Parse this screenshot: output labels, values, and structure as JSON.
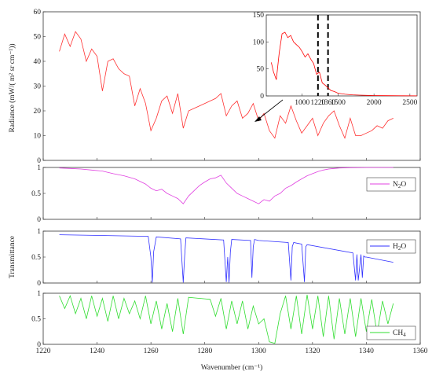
{
  "chart_data": [
    {
      "type": "line",
      "panel": "radiance",
      "ylabel": "Radiance (mW/( m² sr cm⁻¹))",
      "xlim": [
        1220,
        1360
      ],
      "ylim": [
        0,
        60
      ],
      "yticks": [
        "0",
        "10",
        "20",
        "30",
        "40",
        "50",
        "60"
      ],
      "color": "#ff3030",
      "series": [
        {
          "x": [
            1226,
            1228,
            1230,
            1232,
            1234,
            1236,
            1238,
            1240,
            1242,
            1244,
            1246,
            1248,
            1250,
            1252,
            1254,
            1256,
            1258,
            1260,
            1262,
            1264,
            1266,
            1268,
            1270,
            1272,
            1274,
            1276,
            1278,
            1280,
            1282,
            1284,
            1286,
            1288,
            1290,
            1292,
            1294,
            1296,
            1298,
            1300,
            1302,
            1304,
            1306,
            1308,
            1310,
            1312,
            1314,
            1316,
            1318,
            1320,
            1322,
            1324,
            1326,
            1328,
            1330,
            1332,
            1334,
            1336,
            1338,
            1340,
            1342,
            1344,
            1346,
            1348,
            1350
          ],
          "y": [
            44,
            51,
            46,
            52,
            49,
            40,
            45,
            42,
            28,
            40,
            41,
            37,
            35,
            34,
            22,
            29,
            23,
            12,
            17,
            24,
            26,
            19,
            27,
            13,
            20,
            21,
            22,
            23,
            24,
            25,
            27,
            18,
            22,
            24,
            17,
            19,
            23,
            16,
            19,
            12,
            9,
            18,
            15,
            22,
            16,
            11,
            14,
            17,
            10,
            15,
            18,
            20,
            14,
            9,
            17,
            10,
            10,
            11,
            12,
            14,
            13,
            16,
            17
          ]
        }
      ]
    },
    {
      "type": "line",
      "panel": "inset",
      "xlim": [
        500,
        2600
      ],
      "ylim": [
        0,
        150
      ],
      "yticks": [
        "0",
        "50",
        "100",
        "150"
      ],
      "xticks": [
        "1000",
        "1220",
        "1360",
        "1500",
        "2000",
        "2500"
      ],
      "color": "#ff0000",
      "series": [
        {
          "x": [
            570,
            600,
            640,
            680,
            720,
            760,
            800,
            840,
            880,
            920,
            960,
            1000,
            1040,
            1080,
            1120,
            1160,
            1200,
            1240,
            1280,
            1320,
            1360,
            1400,
            1450,
            1500,
            1600,
            1700,
            1800,
            1900,
            2000,
            2200,
            2400,
            2600
          ],
          "y": [
            62,
            45,
            30,
            80,
            115,
            118,
            108,
            112,
            100,
            95,
            90,
            82,
            72,
            78,
            68,
            60,
            40,
            44,
            24,
            20,
            15,
            10,
            8,
            5,
            3,
            2,
            1.5,
            1,
            0.8,
            0.5,
            0.3,
            0.2
          ]
        }
      ],
      "markers": [
        1220,
        1360
      ]
    },
    {
      "type": "line",
      "panel": "N2O",
      "xlim": [
        1220,
        1360
      ],
      "ylim": [
        0,
        1
      ],
      "yticks": [
        "0",
        "0.5",
        "1"
      ],
      "color": "#e040e0",
      "series": [
        {
          "name": "N₂O",
          "x": [
            1226,
            1230,
            1234,
            1238,
            1242,
            1246,
            1250,
            1254,
            1258,
            1260,
            1262,
            1264,
            1266,
            1268,
            1270,
            1272,
            1274,
            1276,
            1278,
            1280,
            1282,
            1284,
            1286,
            1288,
            1290,
            1292,
            1294,
            1296,
            1298,
            1300,
            1302,
            1304,
            1306,
            1308,
            1310,
            1312,
            1314,
            1316,
            1318,
            1320,
            1322,
            1324,
            1326,
            1328,
            1330,
            1334,
            1340,
            1344,
            1350
          ],
          "y": [
            0.99,
            0.98,
            0.97,
            0.95,
            0.93,
            0.88,
            0.84,
            0.78,
            0.68,
            0.6,
            0.55,
            0.58,
            0.5,
            0.45,
            0.4,
            0.3,
            0.45,
            0.55,
            0.65,
            0.72,
            0.78,
            0.8,
            0.85,
            0.7,
            0.6,
            0.5,
            0.45,
            0.4,
            0.35,
            0.3,
            0.38,
            0.35,
            0.45,
            0.5,
            0.6,
            0.65,
            0.72,
            0.78,
            0.84,
            0.88,
            0.92,
            0.95,
            0.97,
            0.98,
            0.99,
            0.995,
            0.998,
            0.999,
            1.0
          ]
        }
      ]
    },
    {
      "type": "line",
      "panel": "H2O",
      "ylabel": "Transmittance",
      "xlim": [
        1220,
        1360
      ],
      "ylim": [
        0,
        1
      ],
      "yticks": [
        "0",
        "0.5",
        "1"
      ],
      "color": "#3030ff",
      "series": [
        {
          "name": "H₂O",
          "x": [
            1226,
            1259,
            1260,
            1260.5,
            1261,
            1262,
            1271,
            1272,
            1272.5,
            1273,
            1287,
            1288,
            1288.5,
            1289,
            1289.5,
            1290,
            1297,
            1297.5,
            1298,
            1298.5,
            1300,
            1311,
            1312,
            1312.5,
            1313,
            1316,
            1317,
            1317.5,
            1318,
            1335,
            1336,
            1336.5,
            1337,
            1338,
            1338.5,
            1339,
            1339.5,
            1340,
            1350
          ],
          "y": [
            0.93,
            0.9,
            0.5,
            0.01,
            0.6,
            0.89,
            0.85,
            0.01,
            0.5,
            0.87,
            0.83,
            0.02,
            0.5,
            0.01,
            0.6,
            0.84,
            0.82,
            0.1,
            0.7,
            0.84,
            0.82,
            0.78,
            0.05,
            0.7,
            0.78,
            0.75,
            0.02,
            0.7,
            0.74,
            0.58,
            0.05,
            0.55,
            0.05,
            0.55,
            0.1,
            0.52,
            0.5,
            0.5,
            0.4
          ]
        }
      ]
    },
    {
      "type": "line",
      "panel": "CH4",
      "xlabel": "Wavenumber (cm⁻¹)",
      "xlim": [
        1220,
        1360
      ],
      "ylim": [
        0,
        1
      ],
      "yticks": [
        "0",
        "0.5",
        "1"
      ],
      "xticks": [
        "1220",
        "1240",
        "1260",
        "1280",
        "1300",
        "1320",
        "1340",
        "1360"
      ],
      "color": "#30dd30",
      "series": [
        {
          "name": "CH₄",
          "x": [
            1226,
            1228,
            1230,
            1232,
            1234,
            1236,
            1238,
            1240,
            1242,
            1244,
            1246,
            1248,
            1250,
            1252,
            1254,
            1256,
            1258,
            1260,
            1262,
            1264,
            1266,
            1268,
            1270,
            1272,
            1274,
            1276,
            1278,
            1280,
            1282,
            1284,
            1286,
            1288,
            1290,
            1292,
            1294,
            1296,
            1298,
            1300,
            1302,
            1304,
            1306,
            1308,
            1310,
            1312,
            1314,
            1316,
            1318,
            1320,
            1322,
            1324,
            1326,
            1328,
            1330,
            1332,
            1334,
            1336,
            1338,
            1340,
            1342,
            1344,
            1346,
            1348,
            1350
          ],
          "y": [
            0.95,
            0.7,
            0.95,
            0.6,
            0.9,
            0.5,
            0.95,
            0.55,
            0.9,
            0.45,
            0.95,
            0.5,
            0.9,
            0.6,
            0.85,
            0.5,
            0.95,
            0.4,
            0.85,
            0.3,
            0.8,
            0.25,
            0.9,
            0.2,
            0.92,
            0.91,
            0.9,
            0.89,
            0.88,
            0.55,
            0.9,
            0.3,
            0.85,
            0.4,
            0.85,
            0.3,
            0.75,
            0.4,
            0.5,
            0.05,
            0.02,
            0.6,
            0.95,
            0.3,
            0.95,
            0.2,
            0.97,
            0.3,
            0.95,
            0.15,
            0.95,
            0.1,
            0.9,
            0.2,
            0.9,
            0.15,
            0.9,
            0.25,
            0.88,
            0.2,
            0.85,
            0.4,
            0.8
          ]
        }
      ]
    }
  ],
  "legend": {
    "n2o": {
      "main": "N",
      "sub": "2",
      "tail": "O"
    },
    "h2o": {
      "main": "H",
      "sub": "2",
      "tail": "O"
    },
    "ch4": {
      "main": "CH",
      "sub": "4",
      "tail": ""
    }
  },
  "labels": {
    "radiance_ylabel": "Radiance (mW/( m² sr cm⁻¹))",
    "transmittance_ylabel": "Transmittance",
    "xlabel": "Wavenumber (cm⁻¹)"
  }
}
